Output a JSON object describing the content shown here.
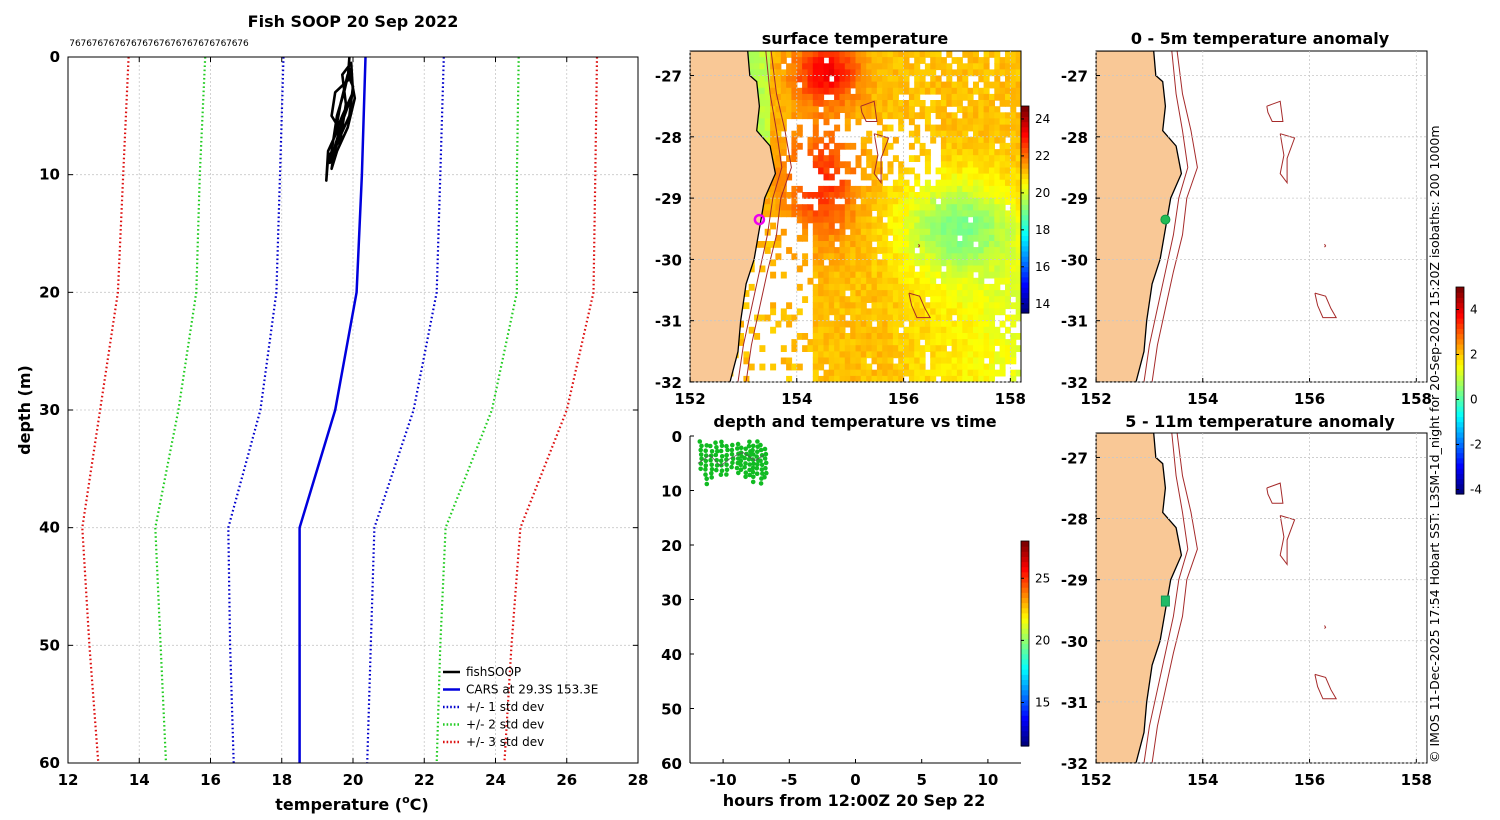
{
  "credit": "© IMOS 11-Dec-2025 17:54 Hobart SST: L3SM-1d_night for 20-Sep-2022 15:20Z isobaths: 200  1000m",
  "colors": {
    "land": "#f9c896",
    "coast": "#000000",
    "isobath": "#a52a2a",
    "fish": "#000000",
    "cars": "#0000dd",
    "std1": "#0000cc",
    "std2": "#22cc22",
    "std3": "#dd1111",
    "grid": "#c8c8c8",
    "dot": "#11bb22",
    "marker": "#ee00ee"
  },
  "chart_data": [
    {
      "id": "profile",
      "type": "line",
      "title": "Fish SOOP 20 Sep 2022",
      "xlabel": "temperature (",
      "xlabel_sup": "o",
      "xlabel_tail": "C)",
      "ylabel": "depth (m)",
      "xlim": [
        12,
        28
      ],
      "ylim": [
        0,
        60
      ],
      "y_reversed": true,
      "xticks": [
        "12",
        "14",
        "16",
        "18",
        "20",
        "22",
        "24",
        "26",
        "28"
      ],
      "yticks": [
        "0",
        "10",
        "20",
        "30",
        "40",
        "50",
        "60"
      ],
      "top_labels": [
        "76",
        "76",
        "76",
        "76",
        "76",
        "76",
        "76",
        "76",
        "76",
        "76",
        "76",
        "76",
        "76",
        "76",
        "76",
        "76"
      ],
      "legend": [
        "fishSOOP",
        "CARS at 29.3S 153.3E",
        "+/- 1 std dev",
        "+/- 2 std dev",
        "+/- 3 std dev"
      ],
      "series": [
        {
          "name": "CARS at 29.3S 153.3E",
          "style": "solid",
          "color": "#0000dd",
          "points": [
            [
              20.35,
              0
            ],
            [
              20.25,
              10
            ],
            [
              20.1,
              20
            ],
            [
              19.5,
              30
            ],
            [
              18.5,
              40
            ],
            [
              18.5,
              50
            ],
            [
              18.5,
              60
            ]
          ]
        },
        {
          "name": "+/- 1 std dev low",
          "style": "dotted",
          "color": "#0000cc",
          "points": [
            [
              18.05,
              0
            ],
            [
              17.95,
              10
            ],
            [
              17.85,
              20
            ],
            [
              17.4,
              30
            ],
            [
              16.5,
              40
            ],
            [
              16.55,
              50
            ],
            [
              16.65,
              60
            ]
          ]
        },
        {
          "name": "+/- 1 std dev high",
          "style": "dotted",
          "color": "#0000cc",
          "points": [
            [
              22.55,
              0
            ],
            [
              22.45,
              10
            ],
            [
              22.35,
              20
            ],
            [
              21.7,
              30
            ],
            [
              20.6,
              40
            ],
            [
              20.5,
              50
            ],
            [
              20.4,
              60
            ]
          ]
        },
        {
          "name": "+/- 2 std dev low",
          "style": "dotted",
          "color": "#22cc22",
          "points": [
            [
              15.85,
              0
            ],
            [
              15.7,
              10
            ],
            [
              15.6,
              20
            ],
            [
              15.1,
              30
            ],
            [
              14.45,
              40
            ],
            [
              14.6,
              50
            ],
            [
              14.75,
              60
            ]
          ]
        },
        {
          "name": "+/- 2 std dev high",
          "style": "dotted",
          "color": "#22cc22",
          "points": [
            [
              24.65,
              0
            ],
            [
              24.6,
              10
            ],
            [
              24.6,
              20
            ],
            [
              23.9,
              30
            ],
            [
              22.6,
              40
            ],
            [
              22.45,
              50
            ],
            [
              22.35,
              60
            ]
          ]
        },
        {
          "name": "+/- 3 std dev low",
          "style": "dotted",
          "color": "#dd1111",
          "points": [
            [
              13.7,
              0
            ],
            [
              13.55,
              10
            ],
            [
              13.4,
              20
            ],
            [
              12.9,
              30
            ],
            [
              12.4,
              40
            ],
            [
              12.6,
              50
            ],
            [
              12.85,
              60
            ]
          ]
        },
        {
          "name": "+/- 3 std dev high",
          "style": "dotted",
          "color": "#dd1111",
          "points": [
            [
              26.85,
              0
            ],
            [
              26.8,
              10
            ],
            [
              26.75,
              20
            ],
            [
              26.0,
              30
            ],
            [
              24.7,
              40
            ],
            [
              24.45,
              50
            ],
            [
              24.25,
              60
            ]
          ]
        },
        {
          "name": "fishSOOP",
          "style": "solid",
          "color": "#000000",
          "points": [
            [
              19.9,
              0
            ],
            [
              19.85,
              2
            ],
            [
              19.5,
              3
            ],
            [
              19.4,
              5
            ],
            [
              19.6,
              6
            ],
            [
              19.3,
              8
            ],
            [
              19.25,
              10.5
            ],
            [
              19.3,
              8.5
            ],
            [
              19.65,
              7
            ],
            [
              19.8,
              4
            ],
            [
              19.7,
              1.5
            ],
            [
              19.95,
              0.5
            ],
            [
              20.0,
              3
            ],
            [
              19.7,
              5.5
            ],
            [
              19.5,
              7.5
            ],
            [
              19.4,
              9.5
            ],
            [
              19.55,
              8
            ],
            [
              19.85,
              6
            ],
            [
              20.05,
              3.5
            ],
            [
              19.9,
              1
            ],
            [
              19.75,
              3
            ],
            [
              19.55,
              5
            ],
            [
              19.45,
              7
            ],
            [
              19.35,
              9
            ],
            [
              19.6,
              7
            ],
            [
              19.9,
              5
            ],
            [
              20.0,
              2.5
            ],
            [
              19.85,
              1.5
            ],
            [
              19.65,
              4
            ],
            [
              19.5,
              6.5
            ],
            [
              19.7,
              5
            ],
            [
              20.0,
              3
            ]
          ]
        }
      ]
    },
    {
      "id": "surface",
      "type": "heatmap",
      "title": "surface temperature",
      "xlim": [
        152,
        158.2
      ],
      "ylim": [
        -32,
        -26.6
      ],
      "xticks": [
        "152",
        "154",
        "156",
        "158"
      ],
      "yticks": [
        "-27",
        "-28",
        "-29",
        "-30",
        "-31",
        "-32"
      ],
      "colorbar": {
        "range": [
          13.5,
          24.7
        ],
        "ticks": [
          "14",
          "16",
          "18",
          "20",
          "22",
          "24"
        ]
      },
      "marker": {
        "lon": 153.3,
        "lat": -29.35
      }
    },
    {
      "id": "anom1",
      "type": "heatmap",
      "title": "0 - 5m temperature anomaly",
      "xlim": [
        152,
        158.2
      ],
      "ylim": [
        -32,
        -26.6
      ],
      "xticks": [
        "152",
        "154",
        "156",
        "158"
      ],
      "yticks": [
        "-27",
        "-28",
        "-29",
        "-30",
        "-31",
        "-32"
      ],
      "colorbar": {
        "range": [
          -4.2,
          5.0
        ],
        "ticks": [
          "-4",
          "-2",
          "0",
          "2",
          "4"
        ]
      },
      "marker": {
        "lon": 153.3,
        "lat": -29.35
      }
    },
    {
      "id": "anom2",
      "type": "heatmap",
      "title": "5 - 11m temperature anomaly",
      "xlim": [
        152,
        158.2
      ],
      "ylim": [
        -32,
        -26.6
      ],
      "xticks": [
        "152",
        "154",
        "156",
        "158"
      ],
      "yticks": [
        "-27",
        "-28",
        "-29",
        "-30",
        "-31",
        "-32"
      ],
      "marker": {
        "lon": 153.3,
        "lat": -29.35
      }
    },
    {
      "id": "timeplot",
      "type": "scatter",
      "title": "depth and temperature vs time",
      "xlabel": "hours from 12:00Z 20 Sep 22",
      "xlim": [
        -12.5,
        12.5
      ],
      "ylim": [
        0,
        60
      ],
      "y_reversed": true,
      "xticks": [
        "-10",
        "-5",
        "0",
        "5",
        "10"
      ],
      "yticks": [
        "0",
        "10",
        "20",
        "30",
        "40",
        "50",
        "60"
      ],
      "colorbar": {
        "range": [
          11.5,
          28
        ],
        "ticks": [
          "15",
          "20",
          "25"
        ]
      }
    }
  ]
}
